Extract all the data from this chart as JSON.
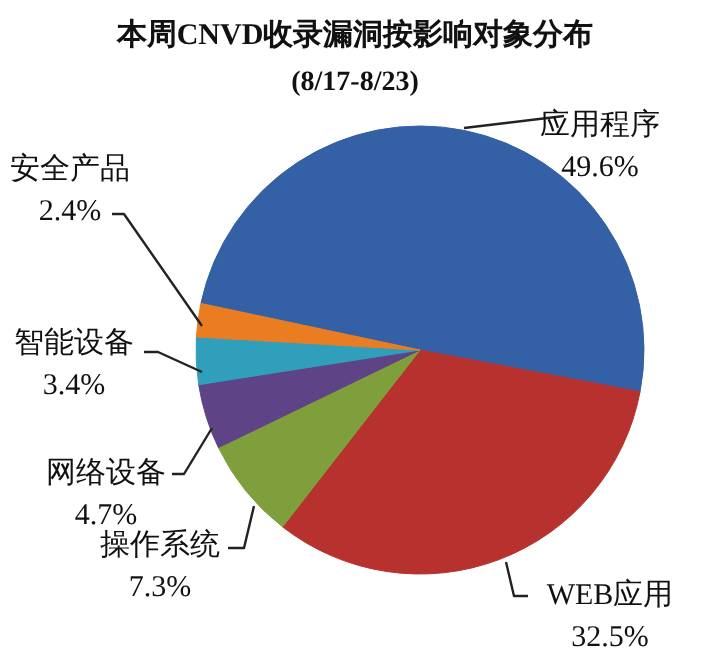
{
  "chart_data": {
    "type": "pie",
    "title": "本周CNVD收录漏洞按影响对象分布",
    "subtitle": "(8/17-8/23)",
    "categories": [
      "应用程序",
      "WEB应用",
      "操作系统",
      "网络设备",
      "智能设备",
      "安全产品"
    ],
    "values": [
      49.6,
      32.5,
      7.3,
      4.7,
      3.4,
      2.4
    ],
    "value_labels": [
      "49.6%",
      "32.5%",
      "7.3%",
      "4.7%",
      "3.4%",
      "2.4%"
    ],
    "colors": [
      "#3461a5",
      "#b7322f",
      "#7f9f3c",
      "#5f4387",
      "#2f9fbb",
      "#ea7d22"
    ],
    "legend": false
  }
}
